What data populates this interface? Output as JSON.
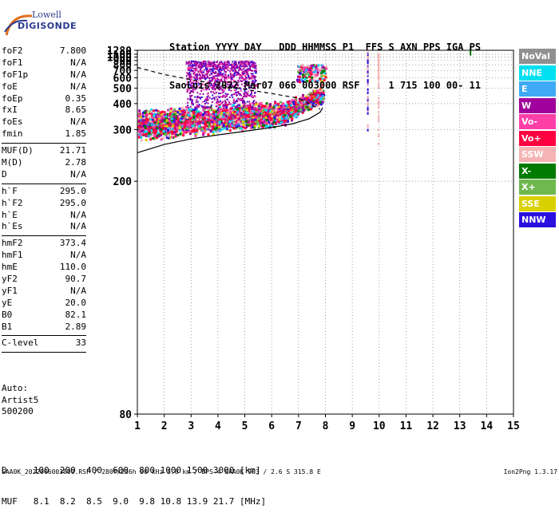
{
  "logo": {
    "line1": "Lowell",
    "line2": "DIGISONDE"
  },
  "header": {
    "line1": "Station YYYY DAY   DDD HHMMSS P1  FFS S AXN PPS IGA PS",
    "line2": "SaoLuis 2022 Mar07 066 003000 RSF     1 715 100 00- 11"
  },
  "params": [
    {
      "key": "foF2",
      "value": "7.800"
    },
    {
      "key": "foF1",
      "value": "N/A"
    },
    {
      "key": "foF1p",
      "value": "N/A"
    },
    {
      "key": "foE",
      "value": "N/A"
    },
    {
      "key": "foEp",
      "value": "0.35"
    },
    {
      "key": "fxI",
      "value": "8.65"
    },
    {
      "key": "foEs",
      "value": "N/A"
    },
    {
      "key": "fmin",
      "value": "1.85"
    },
    {
      "sep": true
    },
    {
      "key": "MUF(D)",
      "value": "21.71"
    },
    {
      "key": "M(D)",
      "value": "2.78"
    },
    {
      "key": "D",
      "value": "N/A"
    },
    {
      "sep": true
    },
    {
      "key": "h`F",
      "value": "295.0"
    },
    {
      "key": "h`F2",
      "value": "295.0"
    },
    {
      "key": "h`E",
      "value": "N/A"
    },
    {
      "key": "h`Es",
      "value": "N/A"
    },
    {
      "sep": true
    },
    {
      "key": "hmF2",
      "value": "373.4"
    },
    {
      "key": "hmF1",
      "value": "N/A"
    },
    {
      "key": "hmE",
      "value": "110.0"
    },
    {
      "key": "yF2",
      "value": "90.7"
    },
    {
      "key": "yF1",
      "value": "N/A"
    },
    {
      "key": "yE",
      "value": "20.0"
    },
    {
      "key": "B0",
      "value": "82.1"
    },
    {
      "key": "B1",
      "value": "2.89"
    },
    {
      "sep": true
    },
    {
      "key": "C-level",
      "value": "33"
    },
    {
      "sep": true
    }
  ],
  "auto": {
    "line1": "Auto:",
    "line2": "Artist5",
    "line3": "500200"
  },
  "dmuf": {
    "d_line": "D     100  200  400  600  800 1000 1500 3000 [km]",
    "muf_line": "MUF   8.1  8.2  8.5  9.0  9.8 10.8 13.9 21.7 [MHz]"
  },
  "footer": {
    "left": "SAA0K_2022066003000.RSF / 280fx256h 50 kHz 5.0 km / DPS-4 SAA0K 903 / 2.6 S 315.8 E",
    "right": "Ion2Png 1.3.17"
  },
  "legend": [
    {
      "label": "NoVal",
      "color": "#909090"
    },
    {
      "label": "NNE",
      "color": "#00e0f0"
    },
    {
      "label": "E",
      "color": "#3fa9f5"
    },
    {
      "label": "W",
      "color": "#a0009c"
    },
    {
      "label": "Vo-",
      "color": "#ff3fa8"
    },
    {
      "label": "Vo+",
      "color": "#ff0040"
    },
    {
      "label": "SSW",
      "color": "#f5b3b3"
    },
    {
      "label": "X-",
      "color": "#007a00"
    },
    {
      "label": "X+",
      "color": "#6fb84f"
    },
    {
      "label": "SSE",
      "color": "#d8d000"
    },
    {
      "label": "NNW",
      "color": "#2a10e0"
    }
  ],
  "chart_data": {
    "type": "scatter",
    "title": "",
    "xlabel": "",
    "ylabel": "",
    "xlim": [
      1,
      15
    ],
    "ylim": [
      80,
      1280
    ],
    "yscale": "reciprocal",
    "x_ticks": [
      1,
      2,
      3,
      4,
      5,
      6,
      7,
      8,
      9,
      10,
      11,
      12,
      13,
      14,
      15
    ],
    "y_ticks": [
      80,
      200,
      300,
      400,
      500,
      600,
      700,
      800,
      900,
      1000,
      1100,
      1280
    ],
    "grid": true,
    "legend_position": "right",
    "traces": [
      {
        "name": "O-trace F2 (Vo+)",
        "color": "#ff0040",
        "x": [
          1.3,
          2.0,
          3.0,
          4.0,
          5.0,
          6.0,
          6.8,
          7.3,
          7.6,
          7.8,
          7.9
        ],
        "y": [
          300,
          315,
          322,
          330,
          340,
          352,
          372,
          400,
          440,
          490,
          540
        ]
      },
      {
        "name": "virtual height model (solid)",
        "color": "#000000",
        "x": [
          1.0,
          2.0,
          3.0,
          4.0,
          5.0,
          6.0,
          6.8,
          7.4,
          7.8,
          7.9
        ],
        "y": [
          245,
          262,
          275,
          285,
          295,
          306,
          318,
          335,
          360,
          380
        ]
      },
      {
        "name": "electron density profile (dashed)",
        "color": "#000000",
        "x": [
          1.0,
          1.5,
          2.0,
          3.0,
          4.0,
          5.0,
          6.0,
          7.0,
          7.8
        ],
        "y": [
          750,
          690,
          640,
          580,
          530,
          490,
          460,
          430,
          373
        ]
      }
    ],
    "marker": {
      "x": 13.4,
      "y": 1250,
      "color": "#007a00"
    }
  }
}
